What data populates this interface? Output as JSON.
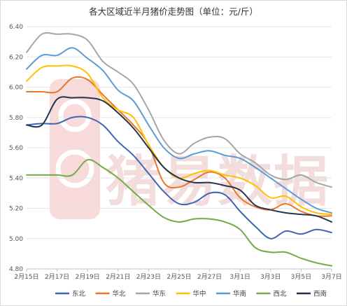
{
  "chart_data": {
    "type": "line",
    "title": "各大区域近半月猪价走势图（单位：元/斤）",
    "xlabel": "",
    "ylabel": "",
    "ylim": [
      4.8,
      6.4
    ],
    "yticks": [
      "4.80",
      "5.00",
      "5.20",
      "5.40",
      "5.60",
      "5.80",
      "6.00",
      "6.20",
      "6.40"
    ],
    "y_tick_values": [
      4.8,
      5.0,
      5.2,
      5.4,
      5.6,
      5.8,
      6.0,
      6.2,
      6.4
    ],
    "x": [
      "2月15日",
      "2月16日",
      "2月17日",
      "2月18日",
      "2月19日",
      "2月20日",
      "2月21日",
      "2月22日",
      "2月23日",
      "2月24日",
      "2月25日",
      "2月26日",
      "2月27日",
      "2月28日",
      "3月1日",
      "3月2日",
      "3月3日",
      "3月4日",
      "3月5日",
      "3月6日",
      "3月7日"
    ],
    "x_tick_labels": [
      "2月15日",
      "2月17日",
      "2月19日",
      "2月21日",
      "2月23日",
      "2月25日",
      "2月27日",
      "3月1日",
      "3月3日",
      "3月5日",
      "3月7日"
    ],
    "grid": true,
    "legend_position": "bottom",
    "series": [
      {
        "name": "东北",
        "color": "#3f66b4",
        "values": [
          5.75,
          5.76,
          5.76,
          5.8,
          5.8,
          5.75,
          5.64,
          5.55,
          5.43,
          5.31,
          5.23,
          5.24,
          5.3,
          5.29,
          5.18,
          5.08,
          5.0,
          5.05,
          5.03,
          5.06,
          5.04
        ]
      },
      {
        "name": "华北",
        "color": "#e9772b",
        "values": [
          5.97,
          5.97,
          5.97,
          6.06,
          6.05,
          5.95,
          5.85,
          5.75,
          5.62,
          5.37,
          5.34,
          5.39,
          5.44,
          5.4,
          5.27,
          5.21,
          5.19,
          5.23,
          5.18,
          5.15,
          5.15
        ]
      },
      {
        "name": "华东",
        "color": "#a5a5a5",
        "values": [
          6.23,
          6.35,
          6.35,
          6.35,
          6.31,
          6.17,
          6.1,
          6.02,
          5.85,
          5.65,
          5.56,
          5.63,
          5.67,
          5.66,
          5.56,
          5.5,
          5.42,
          5.39,
          5.42,
          5.37,
          5.34
        ]
      },
      {
        "name": "华中",
        "color": "#ffc000",
        "values": [
          6.04,
          6.13,
          6.14,
          6.14,
          6.09,
          5.93,
          5.85,
          5.8,
          5.62,
          5.47,
          5.4,
          5.43,
          5.45,
          5.42,
          5.4,
          5.35,
          5.27,
          5.28,
          5.21,
          5.17,
          5.16
        ]
      },
      {
        "name": "华南",
        "color": "#5b9bd5",
        "values": [
          6.12,
          6.21,
          6.21,
          6.26,
          6.19,
          6.11,
          5.98,
          5.91,
          5.75,
          5.6,
          5.53,
          5.56,
          5.58,
          5.55,
          5.53,
          5.47,
          5.4,
          5.33,
          5.26,
          5.2,
          5.17
        ]
      },
      {
        "name": "西北",
        "color": "#70ad47",
        "values": [
          5.42,
          5.42,
          5.42,
          5.42,
          5.52,
          5.47,
          5.4,
          5.31,
          5.22,
          5.14,
          5.11,
          5.13,
          5.13,
          5.11,
          5.06,
          4.94,
          4.91,
          4.91,
          4.87,
          4.84,
          4.82
        ]
      },
      {
        "name": "西南",
        "color": "#24344f",
        "values": [
          5.75,
          5.75,
          5.92,
          5.93,
          5.93,
          5.91,
          5.83,
          5.73,
          5.6,
          5.47,
          5.4,
          5.37,
          5.37,
          5.35,
          5.32,
          5.22,
          5.19,
          5.17,
          5.16,
          5.15,
          5.11
        ]
      }
    ]
  },
  "watermark": {
    "text": "猪易数据",
    "logo": "pig-circle-logo"
  }
}
